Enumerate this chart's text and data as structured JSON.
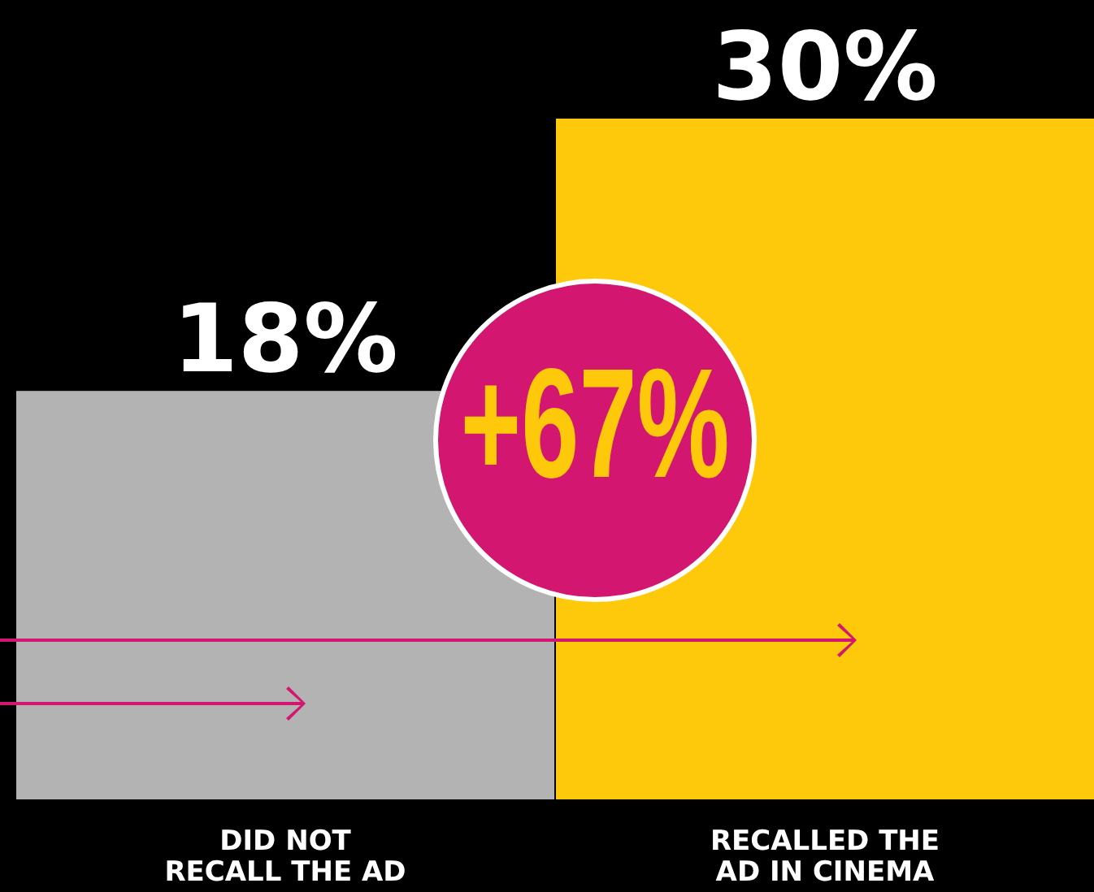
{
  "chart_data": {
    "type": "bar",
    "categories": [
      "DID NOT RECALL THE AD",
      "RECALLED THE AD IN CINEMA"
    ],
    "values": [
      18,
      30
    ],
    "colors": [
      "#b3b3b3",
      "#ffc90b"
    ],
    "value_labels": [
      "18%",
      "30%"
    ],
    "annotations": [
      "+67%"
    ]
  }
}
